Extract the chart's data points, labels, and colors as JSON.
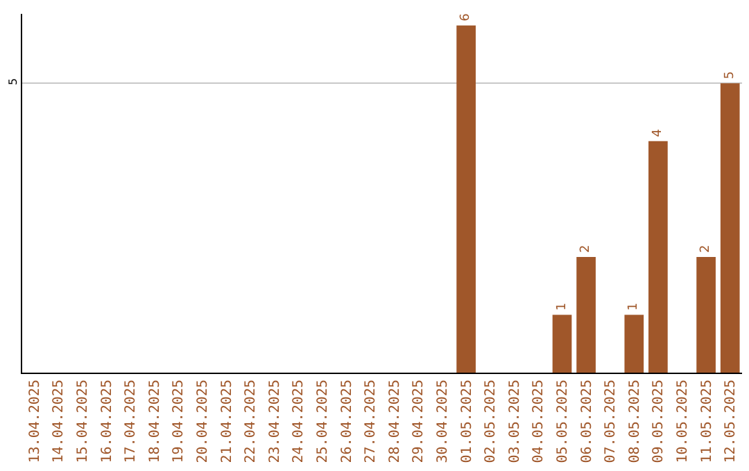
{
  "chart_data": {
    "type": "bar",
    "categories": [
      "13.04.2025",
      "14.04.2025",
      "15.04.2025",
      "16.04.2025",
      "17.04.2025",
      "18.04.2025",
      "19.04.2025",
      "20.04.2025",
      "21.04.2025",
      "22.04.2025",
      "23.04.2025",
      "24.04.2025",
      "25.04.2025",
      "26.04.2025",
      "27.04.2025",
      "28.04.2025",
      "29.04.2025",
      "30.04.2025",
      "01.05.2025",
      "02.05.2025",
      "03.05.2025",
      "04.05.2025",
      "05.05.2025",
      "06.05.2025",
      "07.05.2025",
      "08.05.2025",
      "09.05.2025",
      "10.05.2025",
      "11.05.2025",
      "12.05.2025"
    ],
    "values": [
      null,
      null,
      null,
      null,
      null,
      null,
      null,
      null,
      null,
      null,
      null,
      null,
      null,
      null,
      null,
      null,
      null,
      null,
      6,
      null,
      null,
      null,
      1,
      2,
      null,
      1,
      4,
      null,
      2,
      5
    ],
    "data_labels": true,
    "color": "#a0572a",
    "ylim": [
      0,
      6.2
    ],
    "yticks": [
      5
    ],
    "grid": "y",
    "legend": false
  }
}
